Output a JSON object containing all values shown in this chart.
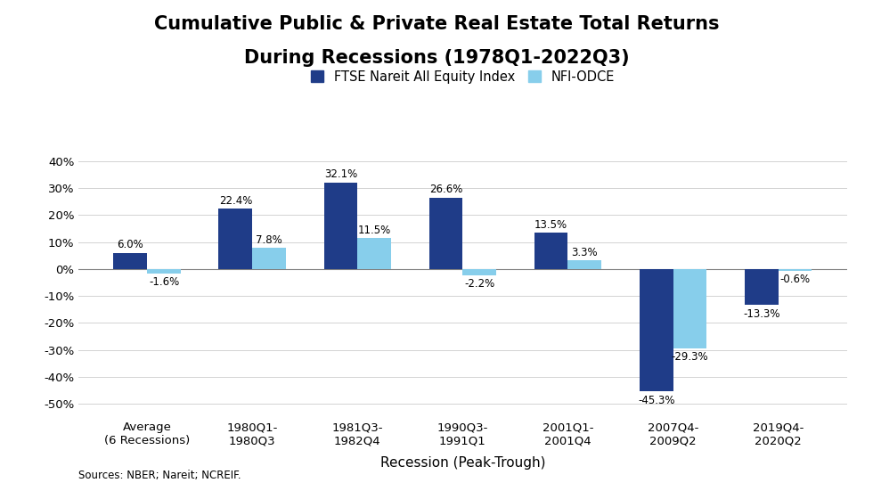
{
  "title_line1": "Cumulative Public & Private Real Estate Total Returns",
  "title_line2": "During Recessions (1978Q1-2022Q3)",
  "categories": [
    "Average\n(6 Recessions)",
    "1980Q1-\n1980Q3",
    "1981Q3-\n1982Q4",
    "1990Q3-\n1991Q1",
    "2001Q1-\n2001Q4",
    "2007Q4-\n2009Q2",
    "2019Q4-\n2020Q2"
  ],
  "ftse_values": [
    6.0,
    22.4,
    32.1,
    26.6,
    13.5,
    -45.3,
    -13.3
  ],
  "nfi_values": [
    -1.6,
    7.8,
    11.5,
    -2.2,
    3.3,
    -29.3,
    -0.6
  ],
  "ftse_color": "#1F3C88",
  "nfi_color": "#87CEEB",
  "xlabel": "Recession (Peak-Trough)",
  "ylim": [
    -55,
    47
  ],
  "yticks": [
    -50,
    -40,
    -30,
    -20,
    -10,
    0,
    10,
    20,
    30,
    40
  ],
  "ytick_labels": [
    "-50%",
    "-40%",
    "-30%",
    "-20%",
    "-10%",
    "0%",
    "10%",
    "20%",
    "30%",
    "40%"
  ],
  "legend_ftse": "FTSE Nareit All Equity Index",
  "legend_nfi": "NFI-ODCE",
  "source_text": "Sources: NBER; Nareit; NCREIF.",
  "title_fontsize": 15,
  "label_fontsize": 8.5,
  "bar_width": 0.32,
  "background_color": "#ffffff"
}
